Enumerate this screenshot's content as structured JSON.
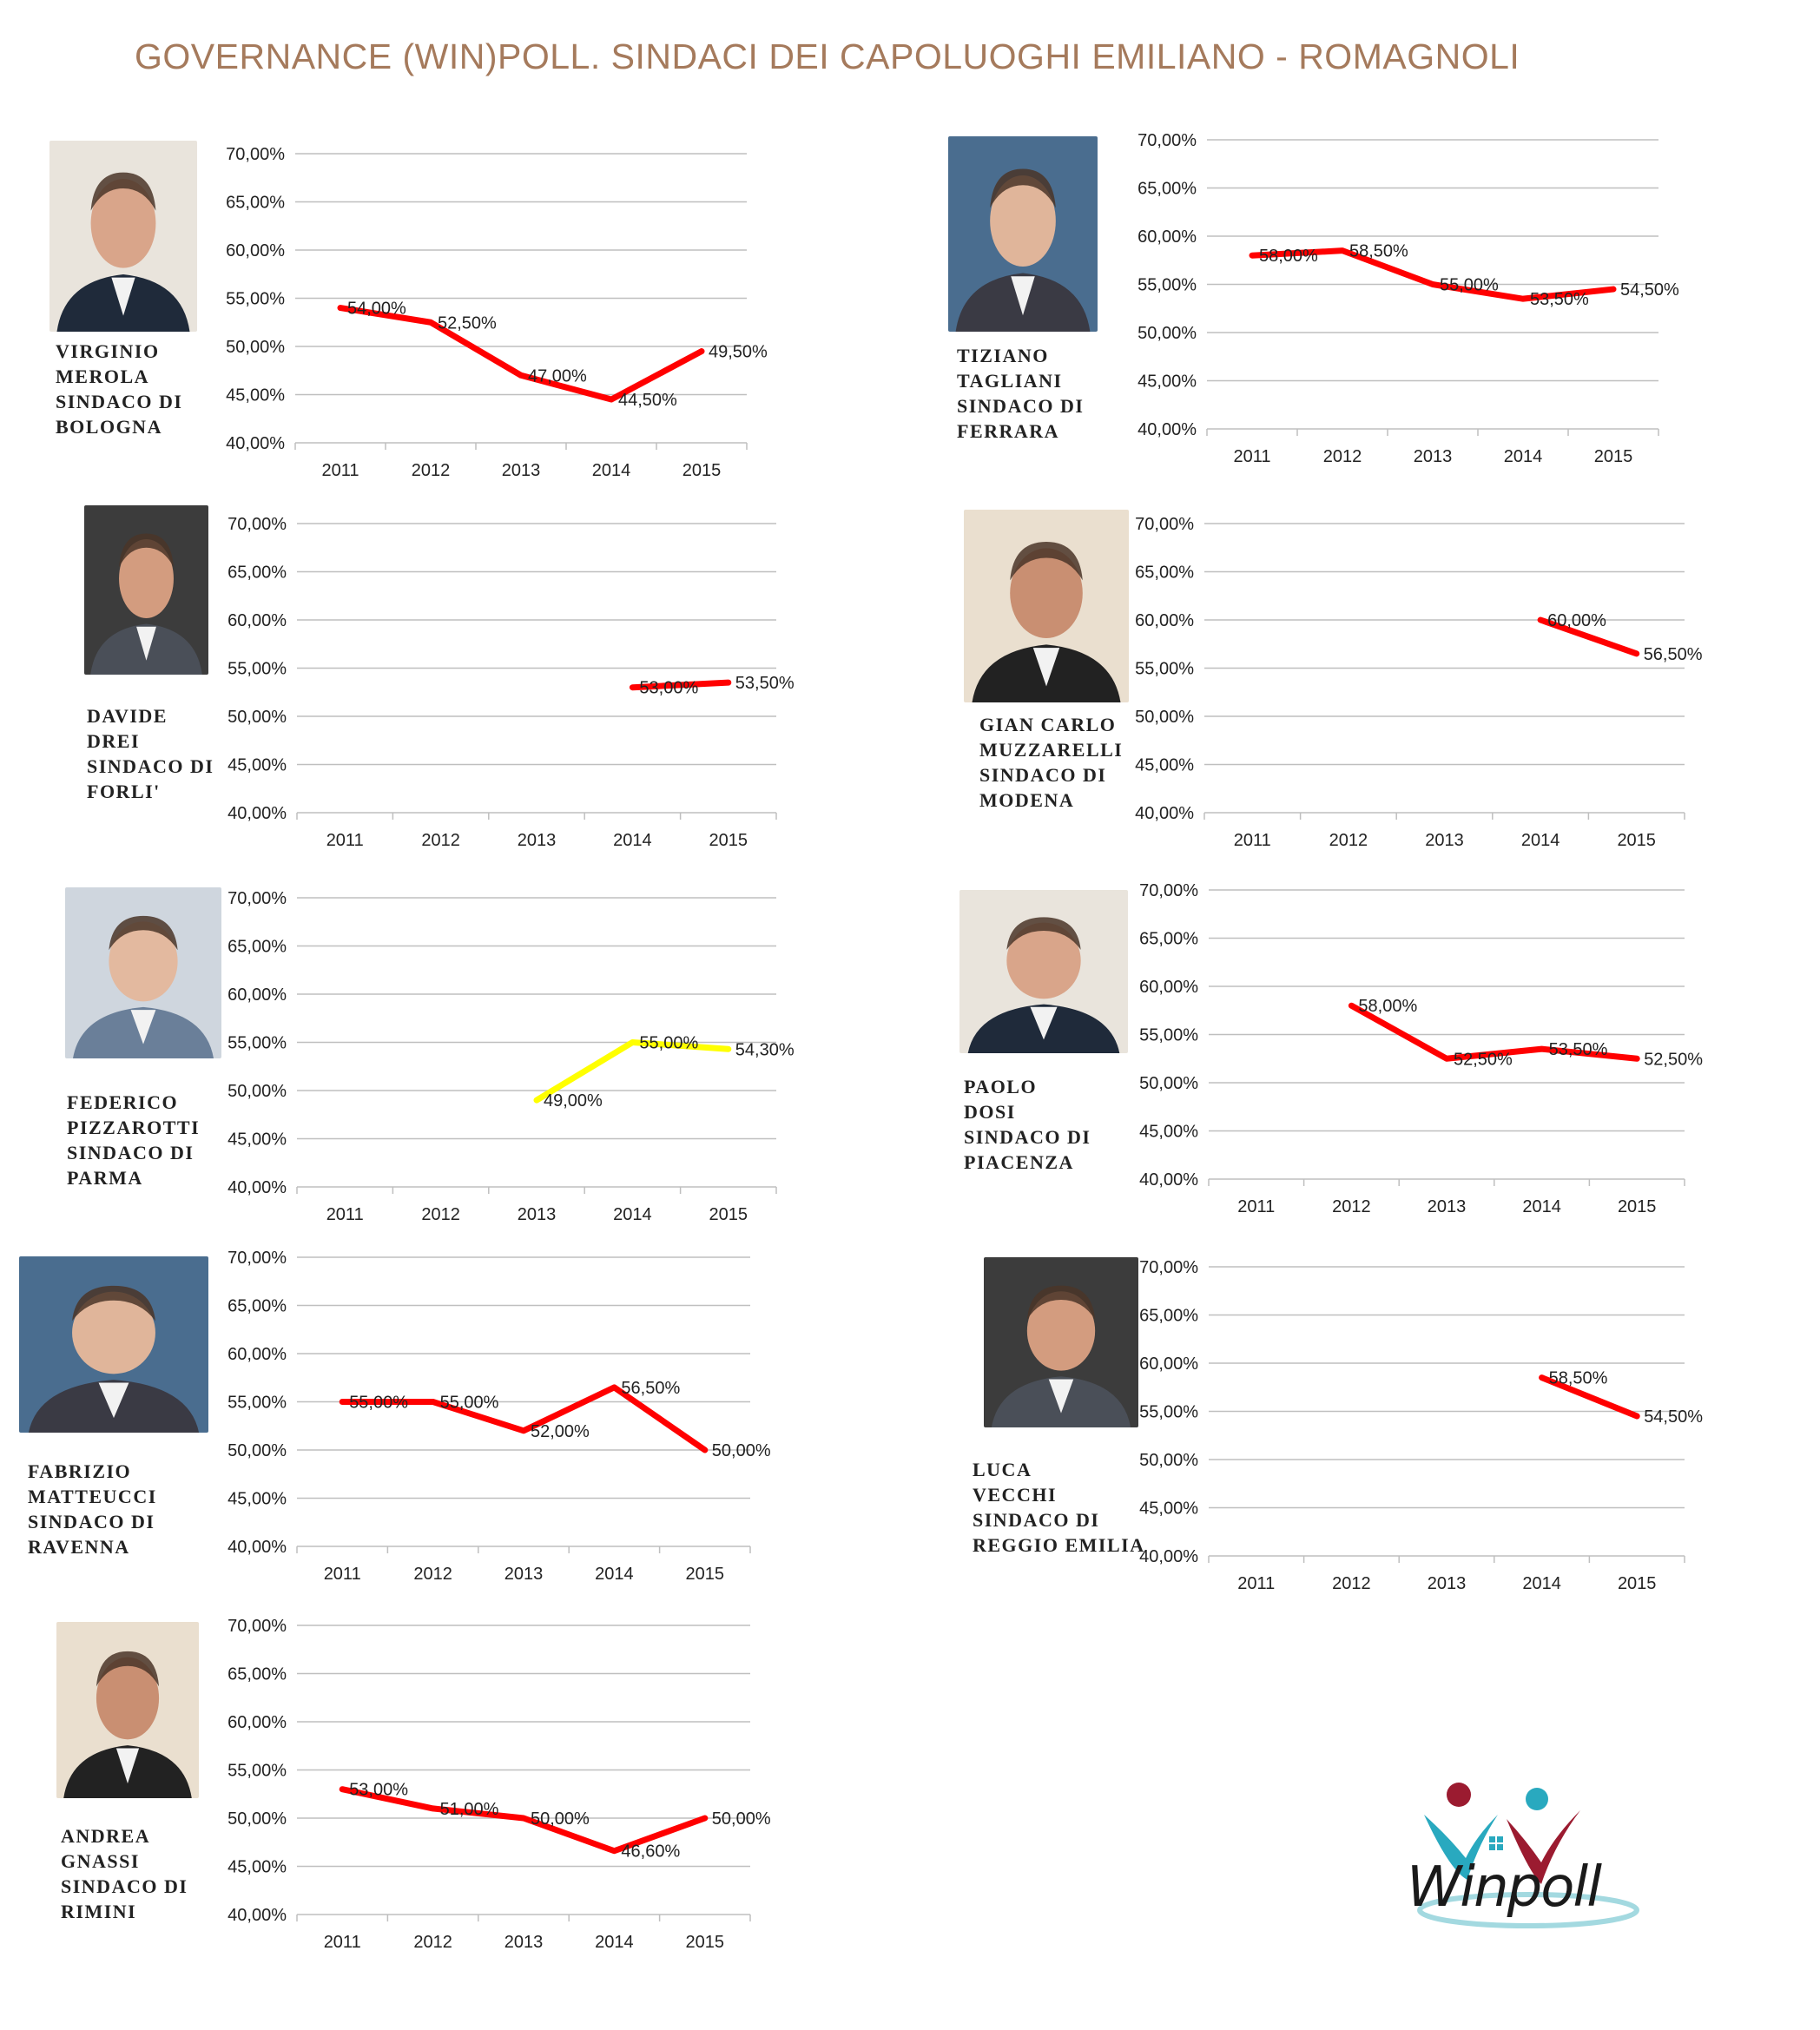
{
  "title": "GOVERNANCE (WIN)POLL. SINDACI DEI CAPOLUOGHI EMILIANO - ROMAGNOLI",
  "logo": {
    "text": "Winpoll",
    "icon": "winpoll-logo"
  },
  "colors": {
    "line_red": "#ff0000",
    "line_yellow": "#ffff00",
    "title": "#a57a5c",
    "grid": "#bfbfbf"
  },
  "chart_data": [
    {
      "id": "bologna",
      "type": "line",
      "mayor": [
        "VIRGINIO",
        "MEROLA",
        "SINDACO DI",
        "BOLOGNA"
      ],
      "categories": [
        "2011",
        "2012",
        "2013",
        "2014",
        "2015"
      ],
      "yticks": [
        "70,00%",
        "65,00%",
        "60,00%",
        "55,00%",
        "50,00%",
        "45,00%",
        "40,00%"
      ],
      "ylim": [
        40,
        70
      ],
      "grid": true,
      "line_color": "#ff0000",
      "points": [
        {
          "x": "2011",
          "y": 54.0,
          "label": "54,00%"
        },
        {
          "x": "2012",
          "y": 52.5,
          "label": "52,50%"
        },
        {
          "x": "2013",
          "y": 47.0,
          "label": "47,00%"
        },
        {
          "x": "2014",
          "y": 44.5,
          "label": "44,50%"
        },
        {
          "x": "2015",
          "y": 49.5,
          "label": "49,50%"
        }
      ]
    },
    {
      "id": "ferrara",
      "type": "line",
      "mayor": [
        "TIZIANO",
        "TAGLIANI",
        "SINDACO DI",
        "FERRARA"
      ],
      "categories": [
        "2011",
        "2012",
        "2013",
        "2014",
        "2015"
      ],
      "yticks": [
        "70,00%",
        "65,00%",
        "60,00%",
        "55,00%",
        "50,00%",
        "45,00%",
        "40,00%"
      ],
      "ylim": [
        40,
        70
      ],
      "grid": true,
      "line_color": "#ff0000",
      "points": [
        {
          "x": "2011",
          "y": 58.0,
          "label": "58,00%"
        },
        {
          "x": "2012",
          "y": 58.5,
          "label": "58,50%"
        },
        {
          "x": "2013",
          "y": 55.0,
          "label": "55,00%"
        },
        {
          "x": "2014",
          "y": 53.5,
          "label": "53,50%"
        },
        {
          "x": "2015",
          "y": 54.5,
          "label": "54,50%"
        }
      ]
    },
    {
      "id": "forli",
      "type": "line",
      "mayor": [
        "DAVIDE",
        "DREI",
        "SINDACO DI",
        "FORLI'"
      ],
      "categories": [
        "2011",
        "2012",
        "2013",
        "2014",
        "2015"
      ],
      "yticks": [
        "70,00%",
        "65,00%",
        "60,00%",
        "55,00%",
        "50,00%",
        "45,00%",
        "40,00%"
      ],
      "ylim": [
        40,
        70
      ],
      "grid": true,
      "line_color": "#ff0000",
      "points": [
        {
          "x": "2014",
          "y": 53.0,
          "label": "53,00%"
        },
        {
          "x": "2015",
          "y": 53.5,
          "label": "53,50%"
        }
      ]
    },
    {
      "id": "modena",
      "type": "line",
      "mayor": [
        "GIAN CARLO",
        "MUZZARELLI",
        "SINDACO DI",
        "MODENA"
      ],
      "categories": [
        "2011",
        "2012",
        "2013",
        "2014",
        "2015"
      ],
      "yticks": [
        "70,00%",
        "65,00%",
        "60,00%",
        "55,00%",
        "50,00%",
        "45,00%",
        "40,00%"
      ],
      "ylim": [
        40,
        70
      ],
      "grid": true,
      "line_color": "#ff0000",
      "points": [
        {
          "x": "2014",
          "y": 60.0,
          "label": "60,00%"
        },
        {
          "x": "2015",
          "y": 56.5,
          "label": "56,50%"
        }
      ]
    },
    {
      "id": "parma",
      "type": "line",
      "mayor": [
        "FEDERICO",
        "PIZZAROTTI",
        "SINDACO DI",
        "PARMA"
      ],
      "categories": [
        "2011",
        "2012",
        "2013",
        "2014",
        "2015"
      ],
      "yticks": [
        "70,00%",
        "65,00%",
        "60,00%",
        "55,00%",
        "50,00%",
        "45,00%",
        "40,00%"
      ],
      "ylim": [
        40,
        70
      ],
      "grid": true,
      "line_color": "#ffff00",
      "points": [
        {
          "x": "2013",
          "y": 49.0,
          "label": "49,00%"
        },
        {
          "x": "2014",
          "y": 55.0,
          "label": "55,00%"
        },
        {
          "x": "2015",
          "y": 54.3,
          "label": "54,30%"
        }
      ]
    },
    {
      "id": "piacenza",
      "type": "line",
      "mayor": [
        "PAOLO",
        "DOSI",
        "SINDACO DI",
        "PIACENZA"
      ],
      "categories": [
        "2011",
        "2012",
        "2013",
        "2014",
        "2015"
      ],
      "yticks": [
        "70,00%",
        "65,00%",
        "60,00%",
        "55,00%",
        "50,00%",
        "45,00%",
        "40,00%"
      ],
      "ylim": [
        40,
        70
      ],
      "grid": true,
      "line_color": "#ff0000",
      "points": [
        {
          "x": "2012",
          "y": 58.0,
          "label": "58,00%"
        },
        {
          "x": "2013",
          "y": 52.5,
          "label": "52,50%"
        },
        {
          "x": "2014",
          "y": 53.5,
          "label": "53,50%"
        },
        {
          "x": "2015",
          "y": 52.5,
          "label": "52,50%"
        }
      ]
    },
    {
      "id": "ravenna",
      "type": "line",
      "mayor": [
        "FABRIZIO",
        "MATTEUCCI",
        "SINDACO DI",
        "RAVENNA"
      ],
      "categories": [
        "2011",
        "2012",
        "2013",
        "2014",
        "2015"
      ],
      "yticks": [
        "70,00%",
        "65,00%",
        "60,00%",
        "55,00%",
        "50,00%",
        "45,00%",
        "40,00%"
      ],
      "ylim": [
        40,
        70
      ],
      "grid": true,
      "line_color": "#ff0000",
      "points": [
        {
          "x": "2011",
          "y": 55.0,
          "label": "55,00%"
        },
        {
          "x": "2012",
          "y": 55.0,
          "label": "55,00%"
        },
        {
          "x": "2013",
          "y": 52.0,
          "label": "52,00%"
        },
        {
          "x": "2014",
          "y": 56.5,
          "label": "56,50%"
        },
        {
          "x": "2015",
          "y": 50.0,
          "label": "50,00%"
        }
      ]
    },
    {
      "id": "reggio-emilia",
      "type": "line",
      "mayor": [
        "LUCA",
        "VECCHI",
        "SINDACO DI",
        "REGGIO EMILIA"
      ],
      "categories": [
        "2011",
        "2012",
        "2013",
        "2014",
        "2015"
      ],
      "yticks": [
        "70,00%",
        "65,00%",
        "60,00%",
        "55,00%",
        "50,00%",
        "45,00%",
        "40,00%"
      ],
      "ylim": [
        40,
        70
      ],
      "grid": true,
      "line_color": "#ff0000",
      "points": [
        {
          "x": "2014",
          "y": 58.5,
          "label": "58,50%"
        },
        {
          "x": "2015",
          "y": 54.5,
          "label": "54,50%"
        }
      ]
    },
    {
      "id": "rimini",
      "type": "line",
      "mayor": [
        "ANDREA",
        "GNASSI",
        "SINDACO DI",
        "RIMINI"
      ],
      "categories": [
        "2011",
        "2012",
        "2013",
        "2014",
        "2015"
      ],
      "yticks": [
        "70,00%",
        "65,00%",
        "60,00%",
        "55,00%",
        "50,00%",
        "45,00%",
        "40,00%"
      ],
      "ylim": [
        40,
        70
      ],
      "grid": true,
      "line_color": "#ff0000",
      "points": [
        {
          "x": "2011",
          "y": 53.0,
          "label": "53,00%"
        },
        {
          "x": "2012",
          "y": 51.0,
          "label": "51,00%"
        },
        {
          "x": "2013",
          "y": 50.0,
          "label": "50,00%"
        },
        {
          "x": "2014",
          "y": 46.6,
          "label": "46,60%"
        },
        {
          "x": "2015",
          "y": 50.0,
          "label": "50,00%"
        }
      ]
    }
  ]
}
